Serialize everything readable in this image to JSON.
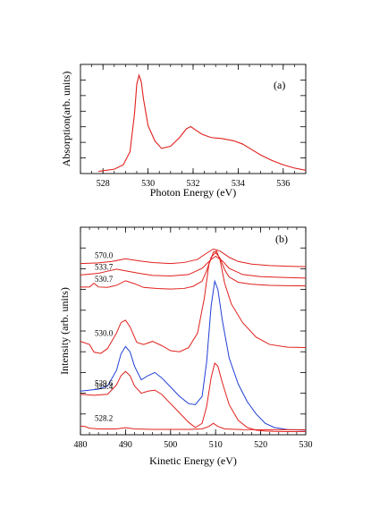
{
  "chart_data": [
    {
      "type": "line",
      "panel_label": "(a)",
      "xlabel": "Photon Energy (eV)",
      "ylabel": "Absorption(arb. units)",
      "xlim": [
        527,
        537
      ],
      "ylim": [
        0,
        1
      ],
      "x_ticks": [
        "528",
        "530",
        "532",
        "534",
        "536"
      ],
      "grid": false,
      "color": "#e0201c",
      "series": [
        {
          "x": [
            527.8,
            528.5,
            528.9,
            529.2,
            529.4,
            529.5,
            529.6,
            529.7,
            529.8,
            530.0,
            530.3,
            530.6,
            531.0,
            531.4,
            531.7,
            531.9,
            532.1,
            532.4,
            532.8,
            533.3,
            533.8,
            534.2,
            534.6,
            535.0,
            535.5,
            536.0,
            536.5,
            537.0
          ],
          "y": [
            0.02,
            0.04,
            0.08,
            0.2,
            0.55,
            0.82,
            0.9,
            0.84,
            0.68,
            0.44,
            0.3,
            0.23,
            0.25,
            0.33,
            0.41,
            0.43,
            0.4,
            0.36,
            0.33,
            0.32,
            0.3,
            0.27,
            0.22,
            0.17,
            0.12,
            0.08,
            0.05,
            0.03
          ]
        }
      ]
    },
    {
      "type": "line",
      "panel_label": "(b)",
      "xlabel": "Kinetic Energy  (eV)",
      "ylabel": "Intensity (arb. units)",
      "xlim": [
        480,
        530
      ],
      "ylim": [
        0,
        10
      ],
      "x_ticks": [
        "480",
        "490",
        "500",
        "510",
        "520",
        "530"
      ],
      "grid": false,
      "series": [
        {
          "name": "570.0",
          "color": "#e0201c",
          "x": [
            480,
            484,
            487,
            490,
            493,
            496,
            500,
            503,
            506,
            508,
            509.5,
            511,
            513,
            515,
            518,
            522,
            526,
            530
          ],
          "y": [
            8.25,
            8.28,
            8.35,
            8.48,
            8.38,
            8.3,
            8.25,
            8.3,
            8.45,
            8.75,
            8.95,
            8.85,
            8.55,
            8.35,
            8.22,
            8.15,
            8.12,
            8.1
          ]
        },
        {
          "name": "533.7",
          "color": "#e0201c",
          "x": [
            480,
            484,
            486,
            488,
            490,
            493,
            496,
            500,
            504,
            507,
            509,
            510,
            511.5,
            513,
            516,
            520,
            525,
            530
          ],
          "y": [
            7.7,
            7.78,
            7.88,
            7.98,
            7.9,
            7.78,
            7.68,
            7.65,
            7.72,
            8.02,
            8.45,
            8.6,
            8.38,
            8.02,
            7.72,
            7.62,
            7.58,
            7.55
          ]
        },
        {
          "name": "530.7",
          "color": "#e0201c",
          "x": [
            480,
            482,
            483,
            484,
            486,
            488,
            490,
            492,
            494,
            497,
            500,
            503,
            505,
            507,
            508,
            509,
            510,
            511,
            512,
            513,
            515,
            518,
            522,
            526,
            530
          ],
          "y": [
            7.12,
            7.12,
            7.3,
            7.12,
            7.1,
            7.2,
            7.42,
            7.28,
            7.1,
            7.05,
            7.02,
            7.05,
            7.15,
            7.4,
            7.9,
            8.55,
            8.78,
            8.5,
            7.95,
            7.6,
            7.35,
            7.25,
            7.2,
            7.18,
            7.17
          ]
        },
        {
          "name": "530.0",
          "color": "#e0201c",
          "x": [
            480,
            482,
            483,
            484.5,
            486,
            488,
            489,
            490,
            491,
            492.5,
            494,
            496,
            498,
            500,
            502,
            504,
            506,
            507.5,
            508.5,
            509.5,
            510.2,
            511,
            512,
            513.5,
            516,
            519,
            522,
            526,
            530
          ],
          "y": [
            4.5,
            4.35,
            3.98,
            3.92,
            4.15,
            4.9,
            5.4,
            5.52,
            5.2,
            4.45,
            4.35,
            4.5,
            4.3,
            4.05,
            4.0,
            4.2,
            4.9,
            6.6,
            8.2,
            8.8,
            8.85,
            8.4,
            7.3,
            6.3,
            5.4,
            4.7,
            4.35,
            4.22,
            4.2
          ]
        },
        {
          "name": "529.6",
          "color": "#1f3fd6",
          "x": [
            480,
            482,
            484,
            486,
            488,
            489,
            490,
            491,
            492,
            493.5,
            495,
            496.5,
            498,
            500,
            502,
            504,
            505.5,
            507,
            508,
            509,
            509.8,
            510.5,
            511.5,
            513,
            515,
            517,
            519,
            521,
            523,
            526,
            530
          ],
          "y": [
            2.1,
            2.15,
            2.2,
            2.35,
            3.1,
            3.9,
            4.25,
            4.0,
            3.3,
            2.65,
            2.85,
            3.0,
            2.75,
            2.3,
            1.85,
            1.5,
            1.45,
            1.85,
            3.5,
            6.2,
            7.4,
            7.0,
            5.5,
            3.7,
            2.45,
            1.6,
            1.0,
            0.55,
            0.35,
            0.25,
            0.22
          ]
        },
        {
          "name": "529.4",
          "color": "#e0201c",
          "x": [
            480,
            483,
            486,
            488,
            489,
            490,
            491,
            492,
            493.5,
            495,
            496.5,
            498,
            500,
            502,
            504,
            505.5,
            507,
            508,
            509,
            509.8,
            510.5,
            511.5,
            513,
            515,
            517,
            519,
            521,
            523,
            526,
            530
          ],
          "y": [
            1.95,
            1.9,
            1.95,
            2.4,
            2.85,
            3.05,
            2.85,
            2.35,
            2.0,
            2.1,
            2.15,
            1.95,
            1.5,
            1.05,
            0.6,
            0.35,
            0.55,
            1.35,
            2.75,
            3.45,
            3.3,
            2.5,
            1.45,
            0.7,
            0.35,
            0.22,
            0.18,
            0.16,
            0.15,
            0.15
          ]
        },
        {
          "name": "528.2",
          "color": "#e0201c",
          "x": [
            480,
            481,
            482,
            484,
            488,
            490,
            492,
            496,
            500,
            504,
            507,
            508.5,
            509.5,
            510.5,
            512,
            516,
            520,
            524,
            530
          ],
          "y": [
            0.42,
            0.4,
            0.32,
            0.28,
            0.28,
            0.34,
            0.28,
            0.26,
            0.26,
            0.26,
            0.28,
            0.4,
            0.55,
            0.4,
            0.28,
            0.25,
            0.24,
            0.24,
            0.24
          ]
        }
      ]
    }
  ]
}
